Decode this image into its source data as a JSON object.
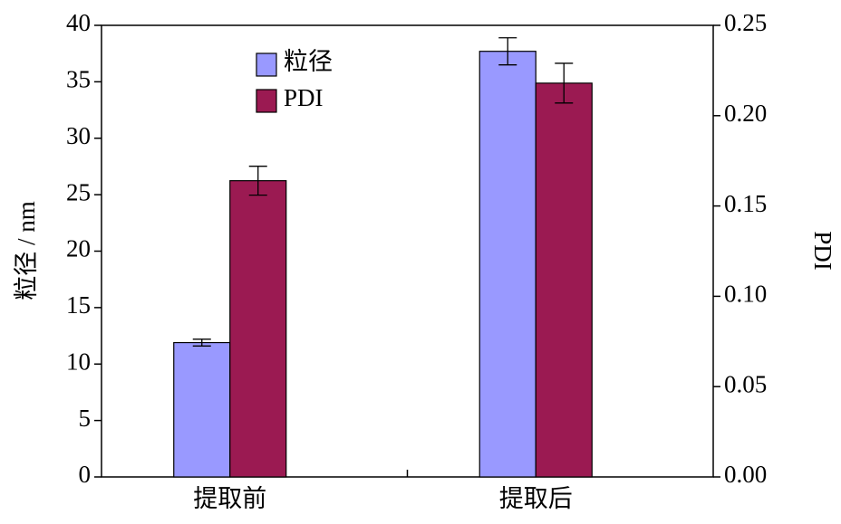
{
  "chart_data": {
    "type": "bar",
    "categories": [
      "提取前",
      "提取后"
    ],
    "series": [
      {
        "name": "粒径",
        "color": "#9999ff",
        "values": [
          11.9,
          37.7
        ],
        "errors": [
          0.3,
          1.2
        ]
      },
      {
        "name": "PDI",
        "color": "#9b1a52",
        "values": [
          0.164,
          0.218
        ],
        "errors": [
          0.008,
          0.011
        ],
        "axis": "y2"
      }
    ],
    "y_label": "粒径 / nm",
    "y2_label": "PDI",
    "ylim": [
      0,
      40
    ],
    "yticks": [
      0,
      5,
      10,
      15,
      20,
      25,
      30,
      35,
      40
    ],
    "y2lim": [
      0,
      0.25
    ],
    "y2ticks": [
      {
        "value": 0,
        "label": "0.00"
      },
      0.05,
      {
        "value": 0.1,
        "label": "0.10"
      },
      0.15,
      {
        "value": 0.2,
        "label": "0.20"
      },
      0.25
    ],
    "legend": "upper-left"
  }
}
